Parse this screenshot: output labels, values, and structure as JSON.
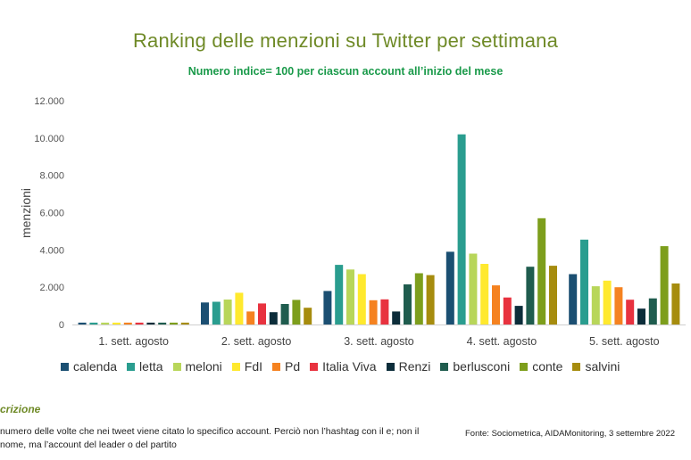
{
  "colors": {
    "title": "#6f8a27",
    "subtitle": "#1a9a4a",
    "series": [
      "#1b4f72",
      "#2a9d8f",
      "#b8d65a",
      "#ffe92e",
      "#f58220",
      "#e8323f",
      "#0c2d3a",
      "#1f5c4e",
      "#7d9e1c",
      "#a68c0e"
    ]
  },
  "header": {
    "title": "Ranking delle menzioni su Twitter per settimana",
    "subtitle": "Numero indice= 100 per ciascun account all’inizio del mese"
  },
  "footer": {
    "description_title": "crizione",
    "description_text": "numero delle volte che nei tweet viene citato lo specifico account. Perciò non l’hashtag con il e; non il nome, ma l’account del leader o del partito",
    "source": "Fonte: Sociometrica, AIDAMonitoring, 3 settembre 2022"
  },
  "chart_data": {
    "type": "bar",
    "title": "",
    "xlabel": "",
    "ylabel": "menzioni",
    "ylim": [
      0,
      12000
    ],
    "yticks": [
      "0",
      "2.000",
      "4.000",
      "6.000",
      "8.000",
      "10.000",
      "12.000"
    ],
    "grid": false,
    "legend_position": "bottom",
    "categories": [
      "1. sett. agosto",
      "2. sett. agosto",
      "3. sett. agosto",
      "4. sett. agosto",
      "5. sett. agosto"
    ],
    "series": [
      {
        "name": "calenda",
        "values": [
          100,
          1180,
          1800,
          3900,
          2700
        ]
      },
      {
        "name": "letta",
        "values": [
          100,
          1220,
          3200,
          10200,
          4550
        ]
      },
      {
        "name": "meloni",
        "values": [
          100,
          1340,
          2950,
          3800,
          2050
        ]
      },
      {
        "name": "FdI",
        "values": [
          100,
          1700,
          2700,
          3250,
          2350
        ]
      },
      {
        "name": "Pd",
        "values": [
          100,
          700,
          1300,
          2100,
          2000
        ]
      },
      {
        "name": "Italia Viva",
        "values": [
          100,
          1130,
          1350,
          1450,
          1330
        ]
      },
      {
        "name": "Renzi",
        "values": [
          100,
          660,
          700,
          1000,
          850
        ]
      },
      {
        "name": "berlusconi",
        "values": [
          100,
          1100,
          2150,
          3100,
          1400
        ]
      },
      {
        "name": "conte",
        "values": [
          100,
          1320,
          2750,
          5700,
          4200
        ]
      },
      {
        "name": "salvini",
        "values": [
          100,
          900,
          2650,
          3150,
          2200
        ]
      }
    ]
  }
}
